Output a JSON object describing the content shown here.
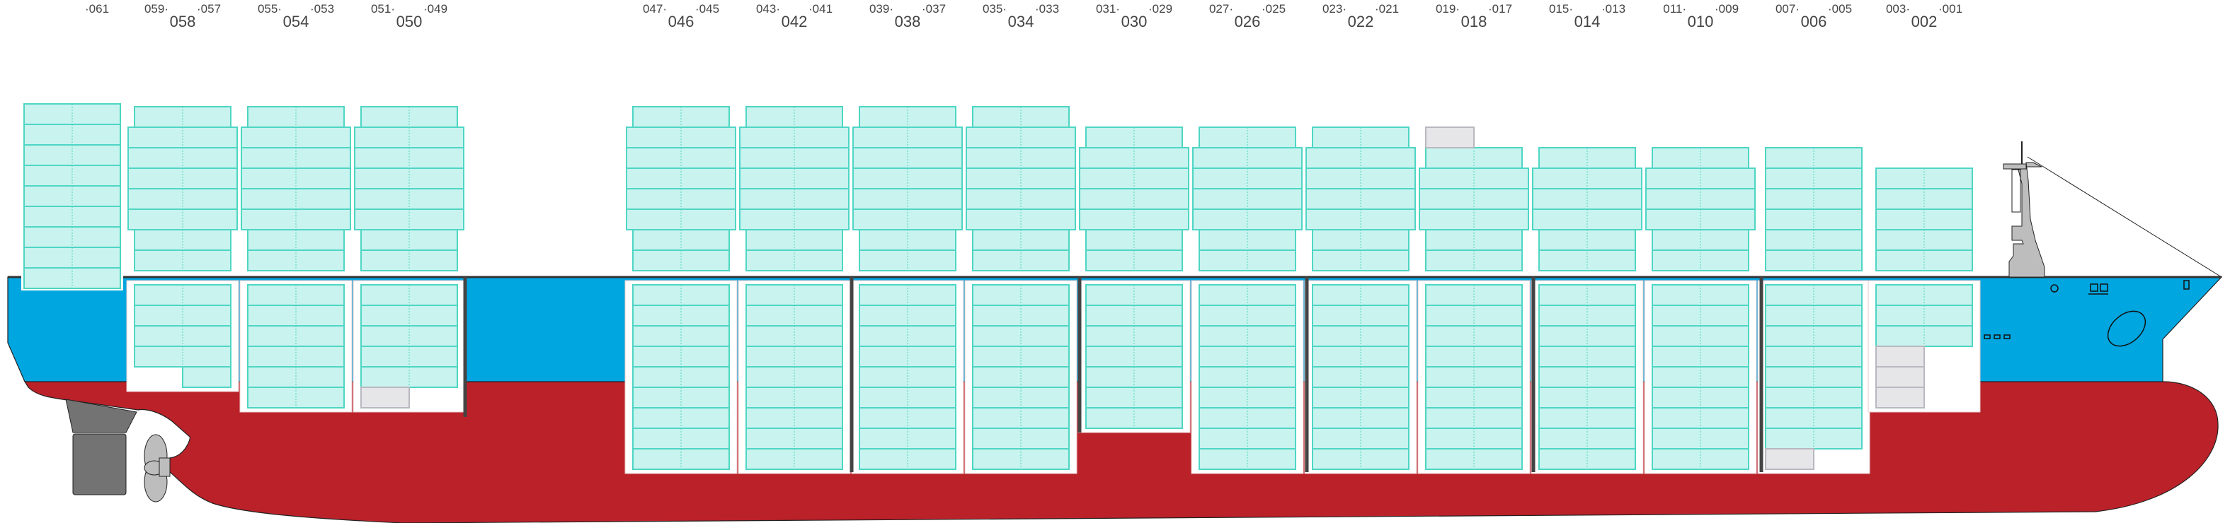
{
  "colors": {
    "hull_upper": "#00a6e0",
    "hull_lower": "#bb2129",
    "container_fill": "#c9f3ee",
    "container_stroke": "#4ed6c4",
    "empty_slot_fill": "#e6e6e9",
    "empty_slot_stroke": "#b8b8c0",
    "bulkhead": "#444444",
    "rudder": "#737373",
    "propeller": "#bdbdbd",
    "superstructure": "#bdbdbd",
    "label_text": "#444444"
  },
  "slot_legend": {
    "F": "container (40')",
    "R": "container right half only",
    "EL": "empty slot left half"
  },
  "bays": [
    {
      "bay": "",
      "left": "",
      "right": "·061",
      "deck": [
        "F",
        "F",
        "F",
        "F",
        "F",
        "F",
        "F",
        "F",
        "F"
      ],
      "hold": []
    },
    {
      "bay": "058",
      "left": "059·",
      "right": "·057",
      "deck": [
        "F",
        "F",
        "F",
        "F",
        "F",
        "F",
        "F",
        "F"
      ],
      "hold": [
        "F",
        "F",
        "F",
        "F",
        "R"
      ]
    },
    {
      "bay": "054",
      "left": "055·",
      "right": "·053",
      "deck": [
        "F",
        "F",
        "F",
        "F",
        "F",
        "F",
        "F",
        "F"
      ],
      "hold": [
        "F",
        "F",
        "F",
        "F",
        "F",
        "F"
      ]
    },
    {
      "bay": "050",
      "left": "051·",
      "right": "·049",
      "deck": [
        "F",
        "F",
        "F",
        "F",
        "F",
        "F",
        "F",
        "F"
      ],
      "hold": [
        "F",
        "F",
        "F",
        "F",
        "F",
        "EL"
      ]
    },
    {
      "bay": "046",
      "left": "047·",
      "right": "·045",
      "deck": [
        "F",
        "F",
        "F",
        "F",
        "F",
        "F",
        "F",
        "F"
      ],
      "hold": [
        "F",
        "F",
        "F",
        "F",
        "F",
        "F",
        "F",
        "F",
        "F"
      ]
    },
    {
      "bay": "042",
      "left": "043·",
      "right": "·041",
      "deck": [
        "F",
        "F",
        "F",
        "F",
        "F",
        "F",
        "F",
        "F"
      ],
      "hold": [
        "F",
        "F",
        "F",
        "F",
        "F",
        "F",
        "F",
        "F",
        "F"
      ]
    },
    {
      "bay": "038",
      "left": "039·",
      "right": "·037",
      "deck": [
        "F",
        "F",
        "F",
        "F",
        "F",
        "F",
        "F",
        "F"
      ],
      "hold": [
        "F",
        "F",
        "F",
        "F",
        "F",
        "F",
        "F",
        "F",
        "F"
      ]
    },
    {
      "bay": "034",
      "left": "035·",
      "right": "·033",
      "deck": [
        "F",
        "F",
        "F",
        "F",
        "F",
        "F",
        "F",
        "F"
      ],
      "hold": [
        "F",
        "F",
        "F",
        "F",
        "F",
        "F",
        "F",
        "F",
        "F"
      ]
    },
    {
      "bay": "030",
      "left": "031·",
      "right": "·029",
      "deck": [
        "F",
        "F",
        "F",
        "F",
        "F",
        "F",
        "F"
      ],
      "hold": [
        "F",
        "F",
        "F",
        "F",
        "F",
        "F",
        "F"
      ]
    },
    {
      "bay": "026",
      "left": "027·",
      "right": "·025",
      "deck": [
        "F",
        "F",
        "F",
        "F",
        "F",
        "F",
        "F"
      ],
      "hold": [
        "F",
        "F",
        "F",
        "F",
        "F",
        "F",
        "F",
        "F",
        "F"
      ]
    },
    {
      "bay": "022",
      "left": "023·",
      "right": "·021",
      "deck": [
        "F",
        "F",
        "F",
        "F",
        "F",
        "F",
        "F"
      ],
      "hold": [
        "F",
        "F",
        "F",
        "F",
        "F",
        "F",
        "F",
        "F",
        "F"
      ]
    },
    {
      "bay": "018",
      "left": "019·",
      "right": "·017",
      "deck": [
        "F",
        "F",
        "F",
        "F",
        "F",
        "F",
        "EL"
      ],
      "hold": [
        "F",
        "F",
        "F",
        "F",
        "F",
        "F",
        "F",
        "F",
        "F"
      ]
    },
    {
      "bay": "014",
      "left": "015·",
      "right": "·013",
      "deck": [
        "F",
        "F",
        "F",
        "F",
        "F",
        "F"
      ],
      "hold": [
        "F",
        "F",
        "F",
        "F",
        "F",
        "F",
        "F",
        "F",
        "F"
      ]
    },
    {
      "bay": "010",
      "left": "011·",
      "right": "·009",
      "deck": [
        "F",
        "F",
        "F",
        "F",
        "F",
        "F"
      ],
      "hold": [
        "F",
        "F",
        "F",
        "F",
        "F",
        "F",
        "F",
        "F",
        "F"
      ]
    },
    {
      "bay": "006",
      "left": "007·",
      "right": "·005",
      "deck": [
        "F",
        "F",
        "F",
        "F",
        "F",
        "F"
      ],
      "hold": [
        "F",
        "F",
        "F",
        "F",
        "F",
        "F",
        "F",
        "F",
        "EL"
      ]
    },
    {
      "bay": "002",
      "left": "003·",
      "right": "·001",
      "deck": [
        "F",
        "F",
        "F",
        "F",
        "F"
      ],
      "hold": [
        "F",
        "F",
        "F",
        "EL",
        "EL",
        "EL"
      ]
    }
  ]
}
